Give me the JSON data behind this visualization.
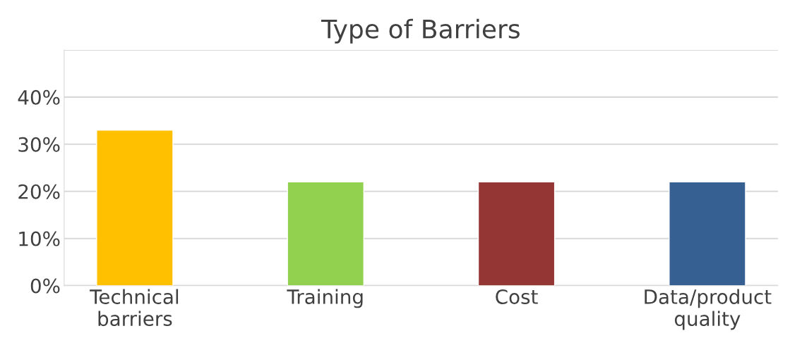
{
  "chart_data": {
    "type": "bar",
    "title": "Type of Barriers",
    "categories": [
      "Technical\nbarriers",
      "Training",
      "Cost",
      "Data/product\nquality"
    ],
    "values": [
      33,
      22,
      22,
      22
    ],
    "colors": [
      "#ffc000",
      "#92d050",
      "#943634",
      "#366092"
    ],
    "ylim": [
      0,
      50
    ],
    "yticks": [
      {
        "value": 0,
        "label": "0%"
      },
      {
        "value": 10,
        "label": "10%"
      },
      {
        "value": 20,
        "label": "20%"
      },
      {
        "value": 30,
        "label": "30%"
      },
      {
        "value": 40,
        "label": "40%"
      },
      {
        "value": 50,
        "label": null
      }
    ],
    "grid": "y"
  }
}
